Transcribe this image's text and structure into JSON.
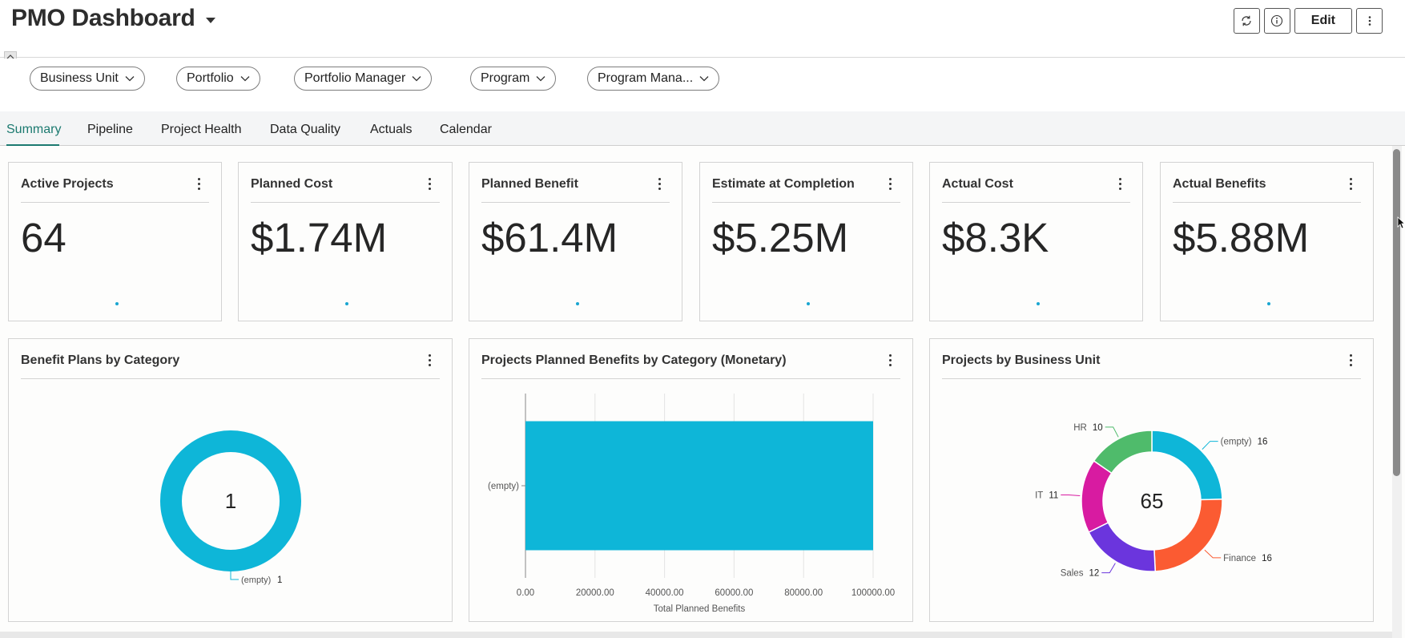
{
  "header": {
    "title": "PMO Dashboard",
    "edit_label": "Edit",
    "icons": [
      "refresh-icon",
      "info-icon",
      "more-vertical-icon"
    ]
  },
  "filters": [
    {
      "label": "Business Unit"
    },
    {
      "label": "Portfolio"
    },
    {
      "label": "Portfolio Manager"
    },
    {
      "label": "Program"
    },
    {
      "label": "Program Mana..."
    }
  ],
  "tabs": [
    {
      "label": "Summary",
      "active": true
    },
    {
      "label": "Pipeline"
    },
    {
      "label": "Project Health"
    },
    {
      "label": "Data Quality"
    },
    {
      "label": "Actuals"
    },
    {
      "label": "Calendar"
    }
  ],
  "kpis": [
    {
      "title": "Active Projects",
      "value": "64"
    },
    {
      "title": "Planned Cost",
      "value": "$1.74M"
    },
    {
      "title": "Planned Benefit",
      "value": "$61.4M"
    },
    {
      "title": "Estimate at Completion",
      "value": "$5.25M"
    },
    {
      "title": "Actual Cost",
      "value": "$8.3K"
    },
    {
      "title": "Actual Benefits",
      "value": "$5.88M"
    }
  ],
  "colors": {
    "accent_teal": "#1c7a70",
    "cyan": "#0eb6d8",
    "orange": "#fb5b32",
    "purple": "#6b35dd",
    "magenta": "#d81ba1",
    "green": "#4fbb6b"
  },
  "chart_data": [
    {
      "type": "pie",
      "title": "Benefit Plans by Category",
      "center_label": "1",
      "slices": [
        {
          "label": "(empty)",
          "value": 1,
          "color": "#0eb6d8"
        }
      ]
    },
    {
      "type": "bar",
      "title": "Projects Planned Benefits by Category (Monetary)",
      "orientation": "horizontal",
      "categories": [
        "(empty)"
      ],
      "values": [
        100000
      ],
      "xlabel": "Total Planned Benefits",
      "ylabel": "",
      "xlim": [
        0,
        100000
      ],
      "xticks": [
        "0.00",
        "20000.00",
        "40000.00",
        "60000.00",
        "80000.00",
        "100000.00"
      ],
      "grid": true,
      "color": "#0eb6d8"
    },
    {
      "type": "pie",
      "title": "Projects by Business Unit",
      "center_label": "65",
      "slices": [
        {
          "label": "(empty)",
          "value": 16,
          "color": "#0eb6d8"
        },
        {
          "label": "Finance",
          "value": 16,
          "color": "#fb5b32"
        },
        {
          "label": "Sales",
          "value": 12,
          "color": "#6b35dd"
        },
        {
          "label": "IT",
          "value": 11,
          "color": "#d81ba1"
        },
        {
          "label": "HR",
          "value": 10,
          "color": "#4fbb6b"
        }
      ]
    }
  ]
}
